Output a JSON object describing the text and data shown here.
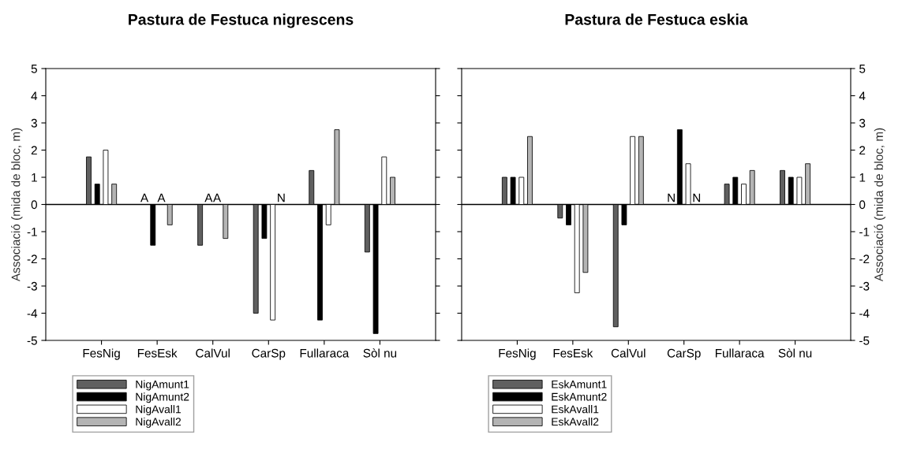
{
  "chart_data": [
    {
      "type": "bar",
      "title": "Pastura de Festuca nigrescens",
      "ylabel": "Associació (mida de bloc, m)",
      "categories": [
        "FesNig",
        "FesEsk",
        "CalVul",
        "CarSp",
        "Fullaraca",
        "Sòl nu"
      ],
      "series": [
        {
          "name": "NigAmunt1",
          "color": "#606060",
          "values": [
            1.75,
            null,
            -1.5,
            -4,
            1.25,
            -1.75
          ]
        },
        {
          "name": "NigAmunt2",
          "color": "#000000",
          "values": [
            0.75,
            -1.5,
            null,
            -1.25,
            -4.25,
            -4.75
          ]
        },
        {
          "name": "NigAvall1",
          "color": "#ffffff",
          "values": [
            2,
            null,
            null,
            -4.25,
            -0.75,
            1.75
          ]
        },
        {
          "name": "NigAvall2",
          "color": "#b4b4b4",
          "values": [
            0.75,
            -0.75,
            -1.25,
            null,
            2.75,
            1
          ]
        }
      ],
      "annotations": [
        {
          "text": "A",
          "x": "FesEsk",
          "y": 0
        },
        {
          "text": "A",
          "x": "FesEsk",
          "y": 0
        },
        {
          "text": "A",
          "x": "CalVul",
          "y": 0
        },
        {
          "text": "A",
          "x": "CalVul",
          "y": 0
        },
        {
          "text": "N",
          "x": "CarSp",
          "y": 0
        }
      ],
      "ylim": [
        -5,
        5
      ],
      "yticks": [
        -5,
        -4,
        -3,
        -2,
        -1,
        0,
        1,
        2,
        3,
        4,
        5
      ],
      "ref_lines": [
        {
          "axis": "y",
          "value": 0
        }
      ],
      "grid": false,
      "legend": "bottom left"
    },
    {
      "type": "bar",
      "title": "Pastura de Festuca eskia",
      "ylabel": "Associació (mida de bloc, m)",
      "categories": [
        "FesNig",
        "FesEsk",
        "CalVul",
        "CarSp",
        "Fullaraca",
        "Sòl nu"
      ],
      "series": [
        {
          "name": "EskAmunt1",
          "color": "#606060",
          "values": [
            1,
            -0.5,
            -4.5,
            null,
            0.75,
            1.25
          ]
        },
        {
          "name": "EskAmunt2",
          "color": "#000000",
          "values": [
            1,
            -0.75,
            -0.75,
            2.75,
            1,
            1
          ]
        },
        {
          "name": "EskAvall1",
          "color": "#ffffff",
          "values": [
            1,
            -3.25,
            2.5,
            1.5,
            0.75,
            1
          ]
        },
        {
          "name": "EskAvall2",
          "color": "#b4b4b4",
          "values": [
            2.5,
            -2.5,
            2.5,
            null,
            1.25,
            1.5
          ]
        }
      ],
      "annotations": [
        {
          "text": "N",
          "x": "CarSp",
          "y": 0
        },
        {
          "text": "N",
          "x": "CarSp",
          "y": 0
        }
      ],
      "ylim": [
        -5,
        5
      ],
      "yticks": [
        -5,
        -4,
        -3,
        -2,
        -1,
        0,
        1,
        2,
        3,
        4,
        5
      ],
      "ref_lines": [
        {
          "axis": "y",
          "value": 0
        }
      ],
      "grid": false,
      "legend": "bottom left"
    }
  ]
}
